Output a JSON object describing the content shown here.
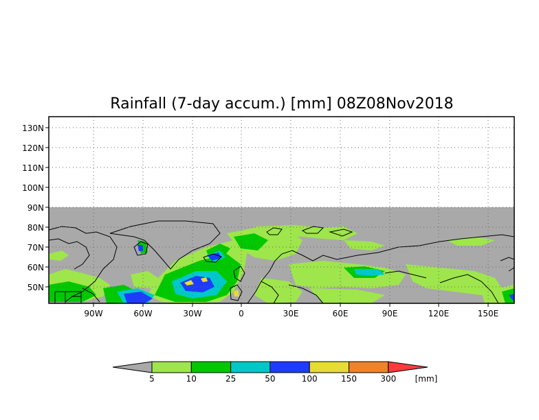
{
  "title": "Rainfall (7-day accum.) [mm] 08Z08Nov2018",
  "map": {
    "lat_labels": [
      "130N",
      "120N",
      "110N",
      "100N",
      "90N",
      "80N",
      "70N",
      "60N",
      "50N"
    ],
    "lon_labels": [
      "90W",
      "60W",
      "30W",
      "0",
      "30E",
      "60E",
      "90E",
      "120E",
      "150E"
    ],
    "no_data_color": "#a9a9a9",
    "coastline_color": "#000000",
    "gridline_style": "dotted"
  },
  "colorbar": {
    "unit": "[mm]",
    "below_color": "#a9a9a9",
    "colors": [
      "#9ee64b",
      "#00c800",
      "#00c8c8",
      "#1e3cff",
      "#e6dc32",
      "#f08228",
      "#fa3c3c"
    ],
    "tick_labels": [
      "5",
      "10",
      "25",
      "50",
      "100",
      "150",
      "300"
    ]
  }
}
